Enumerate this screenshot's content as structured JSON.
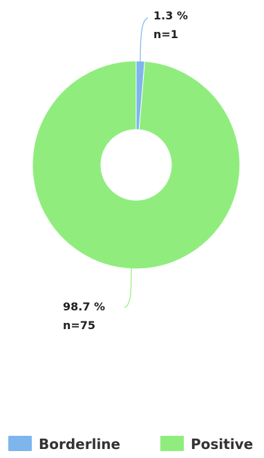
{
  "chart_data": {
    "type": "pie",
    "variant": "donut",
    "slices": [
      {
        "label": "Borderline",
        "percent_text": "1.3 %",
        "count_text": "n=1",
        "value": 1,
        "percent": 1.3,
        "color": "#7db5ec"
      },
      {
        "label": "Positive",
        "percent_text": "98.7 %",
        "count_text": "n=75",
        "value": 75,
        "percent": 98.7,
        "color": "#90ed7d"
      }
    ],
    "legend": {
      "placement": "bottom",
      "items": [
        {
          "label": "Borderline",
          "color": "#7db5ec"
        },
        {
          "label": "Positive",
          "color": "#90ed7d"
        }
      ]
    }
  }
}
